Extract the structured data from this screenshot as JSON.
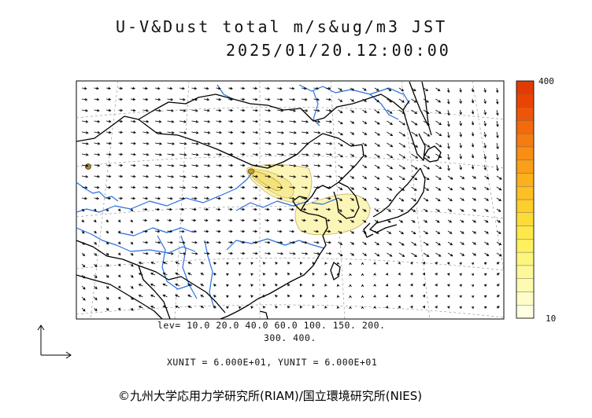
{
  "title": {
    "line1": "U-V&Dust total m/s&ug/m3 JST",
    "line2": "2025/01/20.12:00:00"
  },
  "colorbar": {
    "max_label": "400",
    "min_label": "10",
    "colors": [
      "#fefee0",
      "#fefdc8",
      "#fefbb0",
      "#fef898",
      "#fef57c",
      "#fef060",
      "#fde84a",
      "#fddc38",
      "#fdce2c",
      "#fcbf24",
      "#fbb01e",
      "#fa9f18",
      "#f88e14",
      "#f67c10",
      "#f3690c",
      "#ef5508",
      "#ea4404",
      "#e03c02"
    ]
  },
  "levels": {
    "line1": "lev= 10.0 20.0 40.0 60.0 100. 150. 200.",
    "line2": "300. 400."
  },
  "units": {
    "text": "XUNIT = 6.000E+01, YUNIT = 6.000E+01"
  },
  "credit": {
    "text": "©九州大学応用力学研究所(RIAM)/国立環境研究所(NIES)"
  },
  "colors": {
    "river": "#2a6fe0",
    "coast": "#000000",
    "dust_light": "#fbf5b8",
    "dust_mid": "#f4e27a",
    "dust_core": "#c79a2a"
  },
  "icons": {
    "axis_reference": "axis-arrows-icon"
  }
}
